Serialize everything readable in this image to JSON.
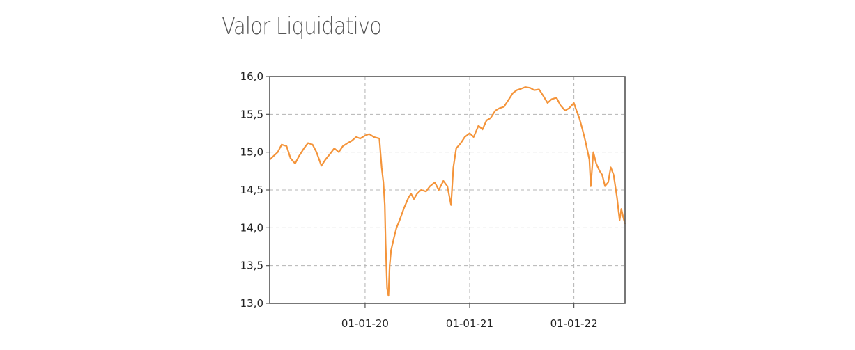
{
  "title": "Valor Liquidativo",
  "chart_data": {
    "type": "line",
    "title": "Valor Liquidativo",
    "xlabel": "",
    "ylabel": "",
    "ylim": [
      13.0,
      16.0
    ],
    "xlim": [
      "2019-02-01",
      "2022-06-29"
    ],
    "grid": true,
    "y_ticks": [
      "16,0",
      "15,5",
      "15,0",
      "14,5",
      "14,0",
      "13,5",
      "13,0"
    ],
    "x_ticks": [
      {
        "date": "2020-01-01",
        "label": "01-01-20"
      },
      {
        "date": "2021-01-01",
        "label": "01-01-21"
      },
      {
        "date": "2022-01-01",
        "label": "01-01-22"
      }
    ],
    "colors": {
      "line": "#f4943a",
      "grid": "#b4b4b4",
      "axis": "#555555"
    },
    "series": [
      {
        "x": [
          "2019-02-01",
          "2019-02-15",
          "2019-03-01",
          "2019-03-15",
          "2019-04-01",
          "2019-04-15",
          "2019-05-01",
          "2019-05-15",
          "2019-06-01",
          "2019-06-15",
          "2019-07-01",
          "2019-07-15",
          "2019-08-01",
          "2019-08-15",
          "2019-09-01",
          "2019-09-15",
          "2019-10-01",
          "2019-10-15",
          "2019-11-01",
          "2019-11-15",
          "2019-12-01",
          "2019-12-15",
          "2020-01-01",
          "2020-01-15",
          "2020-02-01",
          "2020-02-20",
          "2020-02-28",
          "2020-03-05",
          "2020-03-10",
          "2020-03-13",
          "2020-03-18",
          "2020-03-23",
          "2020-03-27",
          "2020-04-01",
          "2020-04-10",
          "2020-04-20",
          "2020-05-01",
          "2020-05-15",
          "2020-06-01",
          "2020-06-10",
          "2020-06-20",
          "2020-07-01",
          "2020-07-15",
          "2020-08-01",
          "2020-08-15",
          "2020-09-01",
          "2020-09-15",
          "2020-10-01",
          "2020-10-15",
          "2020-10-28",
          "2020-11-05",
          "2020-11-15",
          "2020-12-01",
          "2020-12-15",
          "2021-01-01",
          "2021-01-15",
          "2021-02-01",
          "2021-02-15",
          "2021-03-01",
          "2021-03-15",
          "2021-04-01",
          "2021-04-15",
          "2021-05-01",
          "2021-05-15",
          "2021-06-01",
          "2021-06-15",
          "2021-07-01",
          "2021-07-15",
          "2021-08-01",
          "2021-08-15",
          "2021-09-01",
          "2021-09-15",
          "2021-10-01",
          "2021-10-15",
          "2021-11-01",
          "2021-11-15",
          "2021-12-01",
          "2021-12-15",
          "2022-01-01",
          "2022-01-10",
          "2022-01-20",
          "2022-01-31",
          "2022-02-10",
          "2022-02-24",
          "2022-03-01",
          "2022-03-10",
          "2022-03-20",
          "2022-04-01",
          "2022-04-10",
          "2022-04-20",
          "2022-05-01",
          "2022-05-10",
          "2022-05-20",
          "2022-06-01",
          "2022-06-10",
          "2022-06-16",
          "2022-06-22",
          "2022-06-29"
        ],
        "y": [
          14.9,
          14.95,
          15.0,
          15.1,
          15.08,
          14.92,
          14.85,
          14.95,
          15.05,
          15.12,
          15.1,
          15.0,
          14.82,
          14.9,
          14.98,
          15.05,
          15.0,
          15.08,
          15.12,
          15.15,
          15.2,
          15.18,
          15.22,
          15.24,
          15.2,
          15.18,
          14.8,
          14.6,
          14.3,
          13.8,
          13.2,
          13.1,
          13.5,
          13.7,
          13.85,
          14.0,
          14.1,
          14.25,
          14.4,
          14.45,
          14.38,
          14.45,
          14.5,
          14.48,
          14.55,
          14.6,
          14.5,
          14.62,
          14.55,
          14.3,
          14.8,
          15.05,
          15.12,
          15.2,
          15.25,
          15.2,
          15.35,
          15.3,
          15.42,
          15.45,
          15.55,
          15.58,
          15.6,
          15.68,
          15.78,
          15.82,
          15.84,
          15.86,
          15.85,
          15.82,
          15.83,
          15.75,
          15.65,
          15.7,
          15.72,
          15.62,
          15.55,
          15.58,
          15.65,
          15.55,
          15.45,
          15.3,
          15.15,
          14.9,
          14.55,
          15.0,
          14.85,
          14.75,
          14.7,
          14.55,
          14.6,
          14.8,
          14.7,
          14.4,
          14.1,
          14.25,
          14.15,
          14.05
        ]
      }
    ]
  }
}
